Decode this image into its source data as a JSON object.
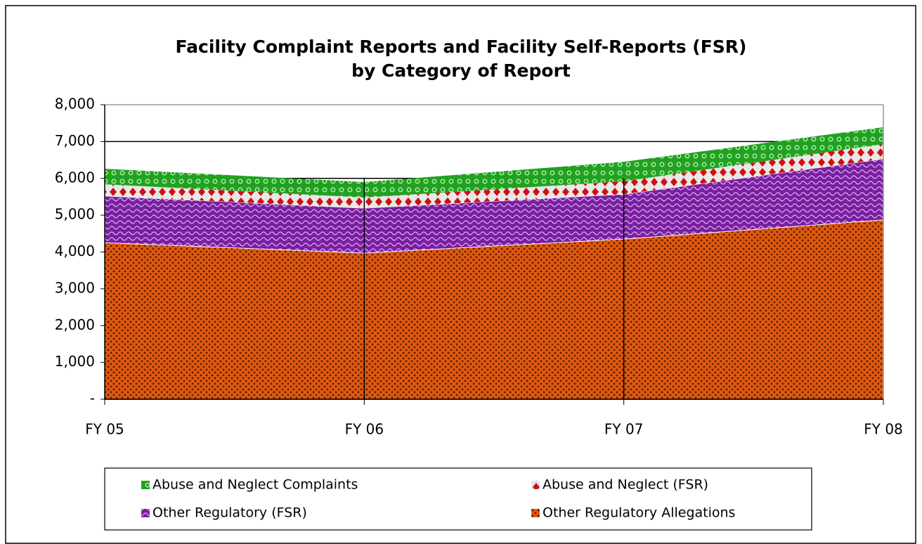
{
  "chart_data": {
    "type": "stacked_area",
    "title": [
      "Facility Complaint Reports and Facility Self-Reports (FSR)",
      "by Category of Report"
    ],
    "categories": [
      "FY 05",
      "FY 06",
      "FY 07",
      "FY 08"
    ],
    "series": [
      {
        "name": "Other Regulatory Allegations",
        "color": "#e05a10",
        "values": [
          4250,
          3970,
          4350,
          4870
        ]
      },
      {
        "name": "Other Regulatory (FSR)",
        "color": "#7a1fa0",
        "values": [
          1270,
          1220,
          1220,
          1660
        ]
      },
      {
        "name": "Abuse and Neglect (FSR)",
        "color": "#d01010",
        "values": [
          320,
          290,
          350,
          400
        ]
      },
      {
        "name": "Abuse and Neglect Complaints",
        "color": "#22a022",
        "values": [
          420,
          420,
          530,
          460
        ]
      }
    ],
    "ylim": [
      0,
      8000
    ],
    "yticks": [
      {
        "value": 0,
        "label": "-"
      },
      {
        "value": 1000,
        "label": "1,000"
      },
      {
        "value": 2000,
        "label": "2,000"
      },
      {
        "value": 3000,
        "label": "3,000"
      },
      {
        "value": 4000,
        "label": "4,000"
      },
      {
        "value": 5000,
        "label": "5,000"
      },
      {
        "value": 6000,
        "label": "6,000"
      },
      {
        "value": 7000,
        "label": "7,000"
      },
      {
        "value": 8000,
        "label": "8,000"
      }
    ],
    "grid": true,
    "legend": "bottom"
  }
}
